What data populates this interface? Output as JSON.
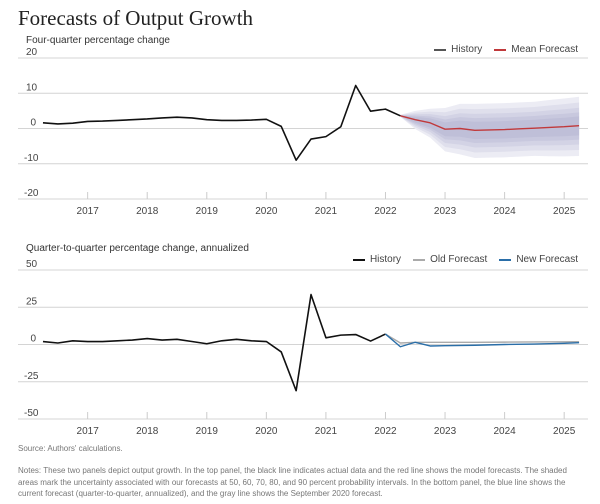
{
  "title": "Forecasts of Output Growth",
  "colors": {
    "history": "#111111",
    "history_legend": "#555555",
    "mean_forecast": "#c0393b",
    "old_forecast": "#aaaaaa",
    "new_forecast": "#2a6ea8",
    "band": "#c9c9dd",
    "grid": "#d4d4d4"
  },
  "chart_data": [
    {
      "type": "line",
      "subtitle": "Four-quarter percentage change",
      "legend": [
        "History",
        "Mean Forecast"
      ],
      "legend_placement": "top-right",
      "ylim": [
        -20,
        20
      ],
      "yticks": [
        20,
        10,
        0,
        -10,
        -20
      ],
      "xlim": [
        2016.2,
        2025.4
      ],
      "xticks": [
        2017,
        2018,
        2019,
        2020,
        2021,
        2022,
        2023,
        2024,
        2025
      ],
      "grid": true,
      "series": [
        {
          "name": "History",
          "x": [
            2016.25,
            2016.5,
            2016.75,
            2017.0,
            2017.25,
            2017.5,
            2017.75,
            2018.0,
            2018.25,
            2018.5,
            2018.75,
            2019.0,
            2019.25,
            2019.5,
            2019.75,
            2020.0,
            2020.25,
            2020.5,
            2020.75,
            2021.0,
            2021.25,
            2021.5,
            2021.75,
            2022.0,
            2022.25
          ],
          "values": [
            1.6,
            1.3,
            1.5,
            2.0,
            2.1,
            2.3,
            2.5,
            2.7,
            3.0,
            3.2,
            3.0,
            2.5,
            2.3,
            2.3,
            2.4,
            2.6,
            0.6,
            -9.0,
            -3.0,
            -2.3,
            0.5,
            12.2,
            4.9,
            5.5,
            3.6
          ]
        },
        {
          "name": "Mean Forecast",
          "x": [
            2022.25,
            2022.5,
            2022.75,
            2023.0,
            2023.25,
            2023.5,
            2023.75,
            2024.0,
            2024.25,
            2024.5,
            2024.75,
            2025.0,
            2025.25
          ],
          "values": [
            3.6,
            2.5,
            1.6,
            -0.2,
            0.0,
            -0.5,
            -0.4,
            -0.3,
            -0.1,
            0.1,
            0.3,
            0.5,
            0.8
          ]
        }
      ],
      "bands": {
        "probabilities": [
          90,
          80,
          70,
          60,
          50
        ],
        "x": [
          2022.25,
          2022.5,
          2022.75,
          2023.0,
          2023.25,
          2023.5,
          2023.75,
          2024.0,
          2024.25,
          2024.5,
          2024.75,
          2025.0,
          2025.25
        ],
        "outer_halfwidth_90": [
          0.3,
          2.5,
          4.0,
          6.0,
          7.0,
          7.5,
          7.5,
          7.5,
          7.5,
          7.5,
          7.8,
          8.0,
          8.2
        ]
      }
    },
    {
      "type": "line",
      "subtitle": "Quarter-to-quarter percentage change, annualized",
      "legend": [
        "History",
        "Old Forecast",
        "New Forecast"
      ],
      "legend_placement": "top-right",
      "ylim": [
        -50,
        50
      ],
      "yticks": [
        50,
        25,
        0,
        -25,
        -50
      ],
      "xlim": [
        2016.2,
        2025.4
      ],
      "xticks": [
        2017,
        2018,
        2019,
        2020,
        2021,
        2022,
        2023,
        2024,
        2025
      ],
      "grid": true,
      "series": [
        {
          "name": "History",
          "x": [
            2016.25,
            2016.5,
            2016.75,
            2017.0,
            2017.25,
            2017.5,
            2017.75,
            2018.0,
            2018.25,
            2018.5,
            2018.75,
            2019.0,
            2019.25,
            2019.5,
            2019.75,
            2020.0,
            2020.25,
            2020.5,
            2020.75,
            2021.0,
            2021.25,
            2021.5,
            2021.75,
            2022.0
          ],
          "values": [
            2.0,
            1.0,
            2.5,
            2.0,
            2.0,
            2.5,
            3.0,
            4.0,
            3.0,
            3.5,
            2.0,
            0.5,
            2.5,
            3.5,
            2.5,
            2.0,
            -5.0,
            -31.0,
            33.5,
            4.5,
            6.3,
            6.7,
            2.3,
            7.0
          ]
        },
        {
          "name": "Old Forecast",
          "x": [
            2022.0,
            2022.25,
            2022.5,
            2022.75,
            2023.0,
            2023.5,
            2024.0,
            2024.5,
            2025.0,
            2025.25
          ],
          "values": [
            7.0,
            1.0,
            1.5,
            1.5,
            1.5,
            1.5,
            1.6,
            1.7,
            1.8,
            1.9
          ]
        },
        {
          "name": "New Forecast",
          "x": [
            2022.0,
            2022.25,
            2022.5,
            2022.75,
            2023.0,
            2023.5,
            2024.0,
            2024.5,
            2025.0,
            2025.25
          ],
          "values": [
            7.0,
            -1.5,
            1.5,
            -1.0,
            -0.8,
            -0.5,
            0.0,
            0.3,
            0.8,
            1.2
          ]
        }
      ]
    }
  ],
  "source": "Source: Authors' calculations.",
  "notes": "Notes: These two panels depict output growth. In the top panel, the black line indicates actual data and the red line shows the model forecasts. The shaded areas mark the uncertainty associated with our forecasts at 50, 60, 70, 80, and 90 percent probability intervals. In the bottom panel, the blue line shows the current forecast (quarter-to-quarter, annualized), and the gray line shows the September 2020 forecast."
}
